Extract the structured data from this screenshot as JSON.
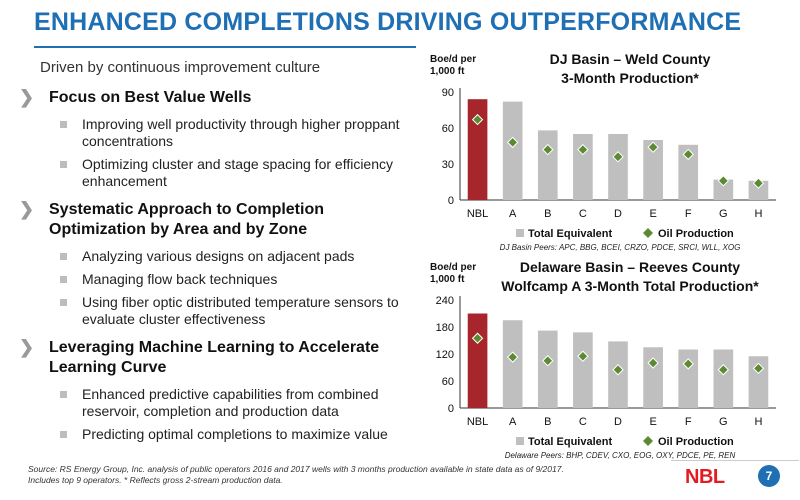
{
  "page": {
    "title": "ENHANCED COMPLETIONS DRIVING OUTPERFORMANCE",
    "subtitle": "Driven by continuous improvement culture",
    "page_number": "7",
    "logo_text": "NBL",
    "footnote_line1": "Source: RS Energy Group, Inc. analysis of public operators 2016 and 2017 wells with 3 months production available in state data as of 9/2017.",
    "footnote_line2": "Includes top 9 operators. * Reflects gross 2-stream production data."
  },
  "bullets": [
    {
      "label": "Focus on Best Value Wells",
      "items": [
        "Improving well productivity through higher proppant concentrations",
        "Optimizing cluster and stage spacing for efficiency enhancement"
      ]
    },
    {
      "label": "Systematic Approach to Completion Optimization by Area and by Zone",
      "items": [
        "Analyzing various designs on adjacent pads",
        "Managing flow back techniques",
        "Using fiber optic distributed temperature sensors to evaluate cluster effectiveness"
      ]
    },
    {
      "label": "Leveraging Machine Learning to Accelerate Learning Curve",
      "items": [
        "Enhanced predictive capabilities from combined reservoir, completion and production data",
        "Predicting optimal completions to maximize value"
      ]
    }
  ],
  "colors": {
    "accent": "#1f6fb4",
    "highlight_bar": "#a6262c",
    "peer_bar": "#bfbfbf",
    "oil_marker": "#5b8a32"
  },
  "chart_data": [
    {
      "type": "bar",
      "title_line1": "DJ Basin – Weld County",
      "title_line2": "3-Month Production*",
      "ylabel_line1": "Boe/d per",
      "ylabel_line2": "1,000 ft",
      "categories": [
        "NBL",
        "A",
        "B",
        "C",
        "D",
        "E",
        "F",
        "G",
        "H"
      ],
      "ylim": [
        0,
        90
      ],
      "yticks": [
        0,
        30,
        60,
        90
      ],
      "series": [
        {
          "name": "Total Equivalent",
          "kind": "bar",
          "values": [
            84,
            82,
            58,
            55,
            55,
            50,
            46,
            17,
            16
          ]
        },
        {
          "name": "Oil Production",
          "kind": "marker",
          "values": [
            67,
            48,
            42,
            42,
            36,
            44,
            38,
            16,
            14
          ]
        }
      ],
      "peers_note": "DJ Basin Peers: APC, BBG, BCEI, CRZO, PDCE, SRCI, WLL, XOG"
    },
    {
      "type": "bar",
      "title_line1": "Delaware Basin – Reeves County",
      "title_line2": "Wolfcamp A 3-Month Total Production*",
      "ylabel_line1": "Boe/d per",
      "ylabel_line2": "1,000 ft",
      "categories": [
        "NBL",
        "A",
        "B",
        "C",
        "D",
        "E",
        "F",
        "G",
        "H"
      ],
      "ylim": [
        0,
        240
      ],
      "yticks": [
        0,
        60,
        120,
        180,
        240
      ],
      "series": [
        {
          "name": "Total Equivalent",
          "kind": "bar",
          "values": [
            210,
            195,
            172,
            168,
            148,
            135,
            130,
            130,
            115
          ]
        },
        {
          "name": "Oil Production",
          "kind": "marker",
          "values": [
            155,
            113,
            105,
            115,
            85,
            100,
            98,
            85,
            88
          ]
        }
      ],
      "peers_note": "Delaware Peers: BHP, CDEV, CXO, EOG, OXY, PDCE, PE, REN"
    }
  ]
}
